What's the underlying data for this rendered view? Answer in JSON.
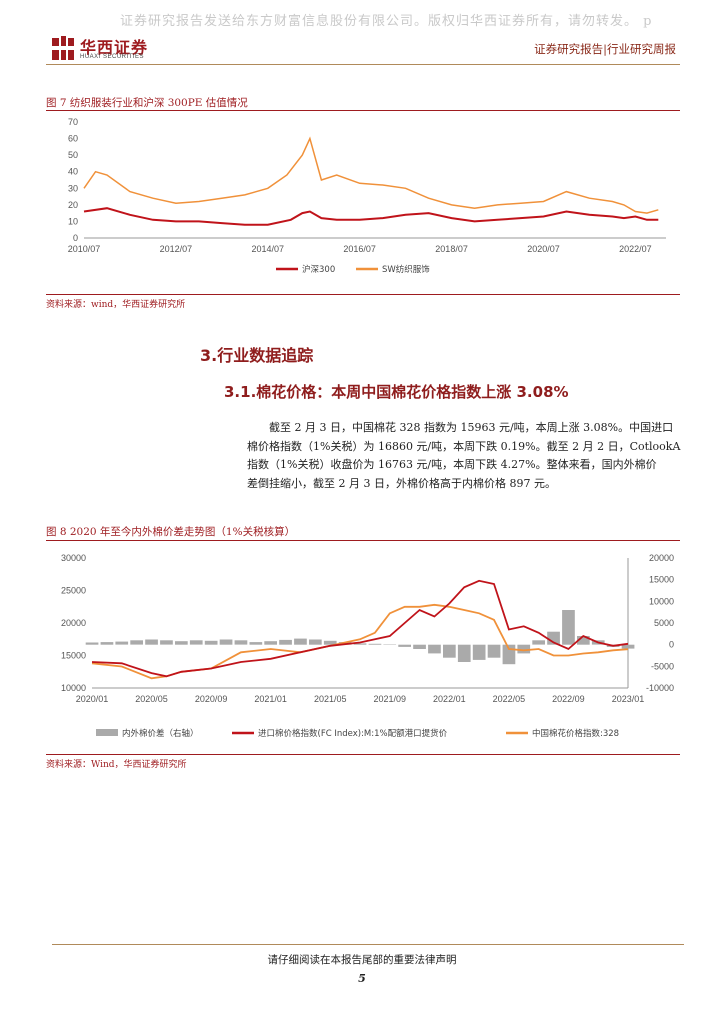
{
  "watermark": "证券研究报告发送给东方财富信息股份有限公司。版权归华西证券所有，请勿转发。 p",
  "brand": {
    "name_cn": "华西证券",
    "name_en": "HUAXI SECURITIES"
  },
  "header": {
    "report_type": "证券研究报告|行业研究周报"
  },
  "figure7": {
    "title": "图 7  纺织服装行业和沪深 300PE 估值情况",
    "source": "资料来源：wind，华西证券研究所",
    "chart_data": {
      "type": "line",
      "x_ticks": [
        "2010/07",
        "2012/07",
        "2014/07",
        "2016/07",
        "2018/07",
        "2020/07",
        "2022/07"
      ],
      "y_ticks": [
        "0",
        "10",
        "20",
        "30",
        "40",
        "50",
        "60",
        "70"
      ],
      "ylim": [
        0,
        70
      ],
      "grid": false,
      "legend_position": "bottom",
      "series": [
        {
          "name": "沪深300",
          "color": "#c0131a",
          "x": [
            "2010/07",
            "2011/01",
            "2011/07",
            "2012/01",
            "2012/07",
            "2013/01",
            "2013/07",
            "2014/01",
            "2014/07",
            "2015/01",
            "2015/04",
            "2015/06",
            "2015/09",
            "2016/01",
            "2016/07",
            "2017/01",
            "2017/07",
            "2018/01",
            "2018/07",
            "2019/01",
            "2019/07",
            "2020/01",
            "2020/07",
            "2021/01",
            "2021/07",
            "2022/01",
            "2022/04",
            "2022/07",
            "2022/10",
            "2023/01"
          ],
          "values": [
            16,
            18,
            14,
            11,
            10,
            10,
            9,
            8,
            8,
            11,
            15,
            16,
            12,
            11,
            11,
            12,
            14,
            15,
            12,
            10,
            11,
            12,
            13,
            16,
            14,
            13,
            12,
            13,
            11,
            11
          ]
        },
        {
          "name": "SW纺织服饰",
          "color": "#f0913a",
          "x": [
            "2010/07",
            "2010/10",
            "2011/01",
            "2011/07",
            "2012/01",
            "2012/07",
            "2013/01",
            "2013/07",
            "2014/01",
            "2014/07",
            "2014/12",
            "2015/04",
            "2015/06",
            "2015/09",
            "2016/01",
            "2016/07",
            "2017/01",
            "2017/07",
            "2018/01",
            "2018/07",
            "2019/01",
            "2019/07",
            "2020/01",
            "2020/07",
            "2021/01",
            "2021/07",
            "2022/01",
            "2022/04",
            "2022/07",
            "2022/10",
            "2023/01"
          ],
          "values": [
            30,
            40,
            38,
            28,
            24,
            21,
            22,
            24,
            26,
            30,
            38,
            50,
            60,
            35,
            38,
            33,
            32,
            30,
            24,
            20,
            18,
            20,
            21,
            22,
            28,
            24,
            22,
            20,
            16,
            15,
            17
          ]
        }
      ]
    }
  },
  "section": {
    "h1": "3.行业数据追踪",
    "h2": "3.1.棉花价格：本周中国棉花价格指数上涨 3.08%",
    "body_lines": [
      "截至 2 月 3 日，中国棉花 328 指数为 15963 元/吨，本周上涨 3.08%。中国进口",
      "棉价格指数（1%关税）为 16860 元/吨，本周下跌 0.19%。截至 2 月 2 日，CotlookA",
      "指数（1%关税）收盘价为 16763 元/吨，本周下跌 4.27%。整体来看，国内外棉价",
      "差倒挂缩小，截至 2 月 3 日，外棉价格高于内棉价格 897 元。"
    ]
  },
  "figure8": {
    "title": "图 8 2020 年至今内外棉价差走势图（1%关税核算）",
    "source": "资料来源：Wind，华西证券研究所",
    "chart_data": {
      "type": "line",
      "x_ticks": [
        "2020/01",
        "2020/05",
        "2020/09",
        "2021/01",
        "2021/05",
        "2021/09",
        "2022/01",
        "2022/05",
        "2022/09",
        "2023/01"
      ],
      "y_left_ticks": [
        "10000",
        "15000",
        "20000",
        "25000",
        "30000"
      ],
      "y_right_ticks": [
        "-10000",
        "-5000",
        "0",
        "5000",
        "10000",
        "15000",
        "20000"
      ],
      "ylim_left": [
        10000,
        30000
      ],
      "ylim_right": [
        -10000,
        20000
      ],
      "grid": false,
      "legend_position": "bottom",
      "series": [
        {
          "name": "内外棉价差（右轴）",
          "axis": "right",
          "kind": "bar",
          "color": "#aaaaaa",
          "x": [
            0,
            1,
            2,
            3,
            4,
            5,
            6,
            7,
            8,
            9,
            10,
            11,
            12,
            13,
            14,
            15,
            16,
            17,
            18,
            19,
            20,
            21,
            22,
            23,
            24,
            25,
            26,
            27,
            28,
            29,
            30,
            31,
            32,
            33,
            34,
            35,
            36
          ],
          "values": [
            500,
            600,
            700,
            1000,
            1200,
            1000,
            800,
            1000,
            900,
            1200,
            1000,
            600,
            800,
            1100,
            1400,
            1200,
            900,
            600,
            300,
            200,
            100,
            -500,
            -1000,
            -2000,
            -3000,
            -4000,
            -3500,
            -3000,
            -4500,
            -2000,
            1000,
            3000,
            8000,
            2000,
            1000,
            -500,
            -900
          ]
        },
        {
          "name": "进口棉价格指数(FC Index):M:1%配额港口提货价",
          "axis": "left",
          "kind": "line",
          "color": "#c0131a",
          "x": [
            0,
            2,
            4,
            5,
            6,
            8,
            10,
            12,
            14,
            16,
            18,
            19,
            20,
            21,
            22,
            23,
            24,
            25,
            26,
            27,
            28,
            29,
            30,
            31,
            32,
            33,
            34,
            35,
            36
          ],
          "values": [
            14000,
            13800,
            12300,
            11800,
            12500,
            13000,
            14000,
            14500,
            15500,
            16500,
            17000,
            17500,
            18000,
            20000,
            22000,
            21000,
            23000,
            25500,
            26500,
            26000,
            19000,
            19500,
            18500,
            17000,
            16000,
            18000,
            17000,
            16500,
            16800
          ]
        },
        {
          "name": "中国棉花价格指数:328",
          "axis": "left",
          "kind": "line",
          "color": "#f0913a",
          "x": [
            0,
            2,
            4,
            5,
            6,
            8,
            10,
            12,
            14,
            16,
            18,
            19,
            20,
            21,
            22,
            23,
            24,
            25,
            26,
            27,
            28,
            29,
            30,
            31,
            32,
            33,
            34,
            35,
            36
          ],
          "values": [
            13800,
            13300,
            11500,
            11800,
            12500,
            13000,
            15500,
            16000,
            15500,
            16500,
            17500,
            18500,
            21500,
            22500,
            22500,
            22800,
            22500,
            22000,
            21500,
            20500,
            16000,
            15800,
            16000,
            15000,
            15000,
            15300,
            15500,
            15800,
            15963
          ]
        }
      ]
    }
  },
  "footer": {
    "note": "请仔细阅读在本报告尾部的重要法律声明",
    "page": "5"
  }
}
